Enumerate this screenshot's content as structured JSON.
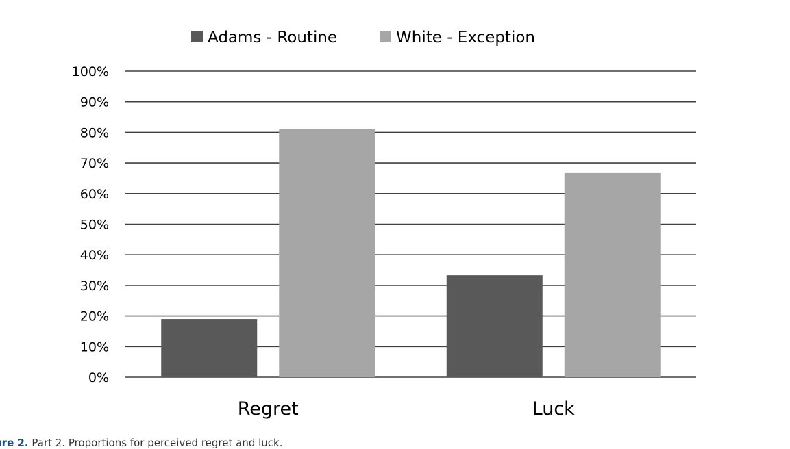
{
  "chart_data": {
    "type": "bar",
    "categories": [
      "Regret",
      "Luck"
    ],
    "series": [
      {
        "name": "Adams - Routine",
        "values": [
          19,
          33.3
        ],
        "color": "#595959"
      },
      {
        "name": "White - Exception",
        "values": [
          81,
          66.7
        ],
        "color": "#a6a6a6"
      }
    ],
    "ylim": [
      0,
      100
    ],
    "yticks": [
      0,
      10,
      20,
      30,
      40,
      50,
      60,
      70,
      80,
      90,
      100
    ],
    "ytick_suffix": "%",
    "grid": true,
    "legend_position": "top",
    "gridline_color": "#404040"
  },
  "caption": {
    "tag": "ure 2.",
    "text": " Part 2. Proportions for perceived regret and luck."
  }
}
